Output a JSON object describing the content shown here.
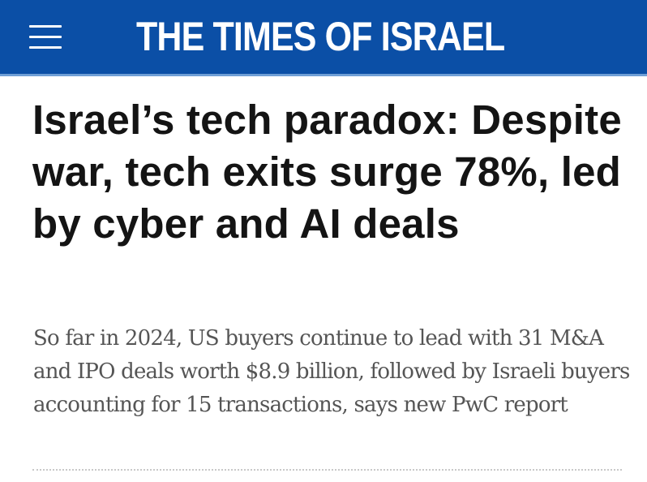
{
  "header": {
    "brand": "THE TIMES OF ISRAEL",
    "menu_icon": "hamburger-menu-icon",
    "background_color": "#0b4fa6"
  },
  "article": {
    "headline": "Israel’s tech paradox: Despite war, tech exits surge 78%, led by cyber and AI deals",
    "subheadline": "So far in 2024, US buyers continue to lead with 31 M&A and IPO deals worth $8.9 billion, followed by Israeli buyers accounting for 15 transactions, says new PwC report"
  }
}
